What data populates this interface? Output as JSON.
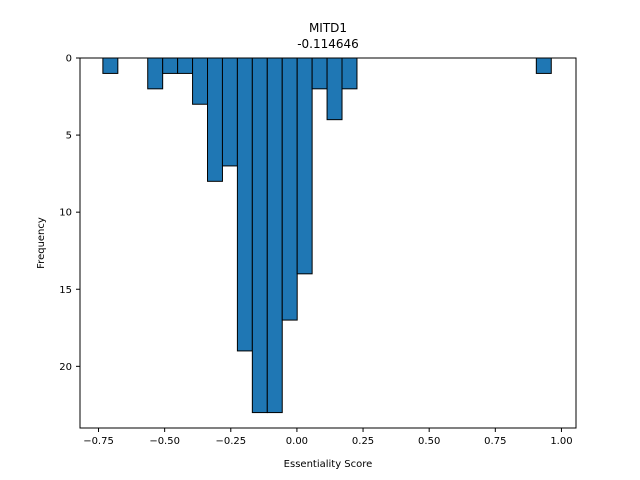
{
  "chart_data": {
    "type": "bar",
    "title": "MITD1",
    "subtitle": "-0.114646",
    "xlabel": "Essentiality Score",
    "ylabel": "Frequency",
    "xlim": [
      -0.82,
      1.055
    ],
    "ylim": [
      24,
      0
    ],
    "y_inverted": true,
    "x_ticks": [
      -0.75,
      -0.5,
      -0.25,
      0.0,
      0.25,
      0.5,
      0.75,
      1.0
    ],
    "x_tick_labels": [
      "−0.75",
      "−0.50",
      "−0.25",
      "0.00",
      "0.25",
      "0.50",
      "0.75",
      "1.00"
    ],
    "y_ticks": [
      0,
      5,
      10,
      15,
      20
    ],
    "y_tick_labels": [
      "0",
      "5",
      "10",
      "15",
      "20"
    ],
    "bin_width": 0.0565,
    "bins": [
      {
        "x0": -0.7335,
        "count": 1
      },
      {
        "x0": -0.564,
        "count": 2
      },
      {
        "x0": -0.5075,
        "count": 1
      },
      {
        "x0": -0.451,
        "count": 1
      },
      {
        "x0": -0.3945,
        "count": 3
      },
      {
        "x0": -0.338,
        "count": 8
      },
      {
        "x0": -0.2815,
        "count": 7
      },
      {
        "x0": -0.225,
        "count": 19
      },
      {
        "x0": -0.1685,
        "count": 23
      },
      {
        "x0": -0.112,
        "count": 23
      },
      {
        "x0": -0.0555,
        "count": 17
      },
      {
        "x0": 0.001,
        "count": 14
      },
      {
        "x0": 0.0575,
        "count": 2
      },
      {
        "x0": 0.114,
        "count": 4
      },
      {
        "x0": 0.1705,
        "count": 2
      },
      {
        "x0": 0.905,
        "count": 1
      }
    ],
    "bar_color": "#1f77b4",
    "edge_color": "#000000",
    "grid": false
  }
}
